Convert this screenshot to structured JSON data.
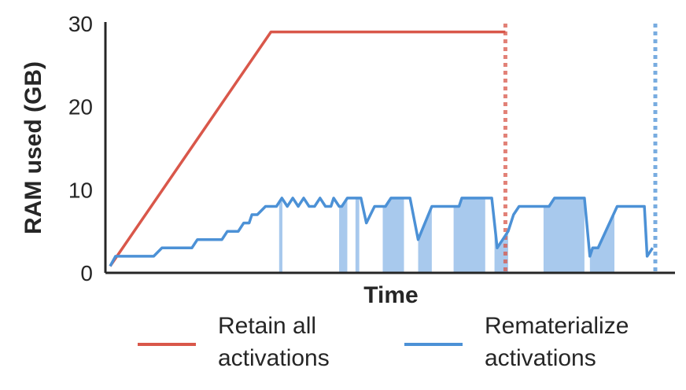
{
  "colors": {
    "retain": "#d9574a",
    "remat": "#4c91d6",
    "remat_fill": "#a8c9ed"
  },
  "chart_data": {
    "type": "line",
    "xlabel": "Time",
    "ylabel": "RAM used (GB)",
    "ylim": [
      0,
      30
    ],
    "yticks": [
      "0",
      "10",
      "20",
      "30"
    ],
    "xlim": [
      0,
      100
    ],
    "series": [
      {
        "key": "retain",
        "legend": [
          "Retain all",
          "activations"
        ],
        "style": "solid",
        "points": [
          [
            0,
            0.8
          ],
          [
            29.5,
            29
          ],
          [
            72.5,
            29
          ]
        ],
        "end_marker_x": 72.5
      },
      {
        "key": "remat",
        "legend": [
          "Rematerialize",
          "activations"
        ],
        "style": "solid",
        "points": [
          [
            0,
            0.8
          ],
          [
            1,
            2
          ],
          [
            8,
            2
          ],
          [
            9.5,
            3
          ],
          [
            15,
            3
          ],
          [
            16,
            4
          ],
          [
            20.5,
            4
          ],
          [
            21.5,
            5
          ],
          [
            23.5,
            5
          ],
          [
            24.5,
            6
          ],
          [
            25.5,
            6
          ],
          [
            26,
            7
          ],
          [
            27,
            7
          ],
          [
            28.5,
            8
          ],
          [
            30.5,
            8
          ],
          [
            31.5,
            9
          ],
          [
            32.5,
            8
          ],
          [
            33.5,
            9
          ],
          [
            34.5,
            8
          ],
          [
            35.5,
            9
          ],
          [
            36.5,
            8
          ],
          [
            37.5,
            8
          ],
          [
            38.5,
            9
          ],
          [
            39.5,
            8
          ],
          [
            40.5,
            8
          ],
          [
            41,
            9
          ],
          [
            42,
            8
          ],
          [
            42.5,
            8
          ],
          [
            43.5,
            9
          ],
          [
            46,
            9
          ],
          [
            47,
            6
          ],
          [
            48.5,
            8
          ],
          [
            50.5,
            8
          ],
          [
            51.5,
            9
          ],
          [
            55,
            9
          ],
          [
            56.5,
            4
          ],
          [
            59,
            8
          ],
          [
            64,
            8
          ],
          [
            64.5,
            9
          ],
          [
            70,
            9
          ],
          [
            71,
            3
          ],
          [
            73,
            5
          ],
          [
            74,
            7
          ],
          [
            75,
            8
          ],
          [
            80.5,
            8
          ],
          [
            81.5,
            9
          ],
          [
            87,
            9
          ],
          [
            88,
            2
          ],
          [
            88.5,
            3
          ],
          [
            89.5,
            3
          ],
          [
            93,
            8
          ],
          [
            98,
            8
          ],
          [
            98.5,
            2
          ],
          [
            99.5,
            3
          ]
        ],
        "end_marker_x": 100,
        "rematerialization_spans": [
          [
            31,
            31.6
          ],
          [
            42,
            43.5
          ],
          [
            45,
            45.7
          ],
          [
            50,
            53.9
          ],
          [
            56.5,
            59
          ],
          [
            63,
            68.8
          ],
          [
            70.5,
            73
          ],
          [
            79.5,
            87
          ],
          [
            88,
            92.5
          ]
        ]
      }
    ],
    "legend_position": "bottom"
  }
}
